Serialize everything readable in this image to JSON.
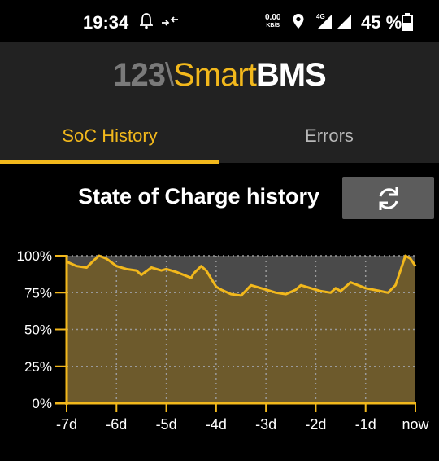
{
  "status_bar": {
    "time": "19:34",
    "speed_value": "0.00",
    "speed_unit": "KB/S",
    "network": "4G",
    "battery": "45 %",
    "icons": [
      "bell-icon",
      "data-transfer-icon",
      "location-icon",
      "signal-icon",
      "battery-icon"
    ]
  },
  "header": {
    "logo_part1": "123",
    "logo_part2": "\\",
    "logo_part3": "Smart",
    "logo_part4": "BMS"
  },
  "tabs": [
    {
      "label": "SoC History",
      "active": true
    },
    {
      "label": "Errors",
      "active": false
    }
  ],
  "page": {
    "title": "State of Charge history",
    "refresh_icon": "refresh-icon"
  },
  "colors": {
    "accent": "#f2b81c",
    "area_fill": "#6d5a2c",
    "missing_band": "#4a4a4a",
    "header_bg": "#222222"
  },
  "chart_data": {
    "type": "area",
    "title": "",
    "xlabel": "",
    "ylabel": "",
    "xlim": [
      -7,
      0
    ],
    "ylim": [
      0,
      100
    ],
    "x_ticks": [
      "-7d",
      "-6d",
      "-5d",
      "-4d",
      "-3d",
      "-2d",
      "-1d",
      "now"
    ],
    "y_ticks": [
      "0%",
      "25%",
      "50%",
      "75%",
      "100%"
    ],
    "grid": true,
    "x": [
      -7.0,
      -6.8,
      -6.6,
      -6.45,
      -6.35,
      -6.2,
      -6.0,
      -5.8,
      -5.6,
      -5.5,
      -5.3,
      -5.1,
      -5.0,
      -4.8,
      -4.5,
      -4.45,
      -4.3,
      -4.2,
      -4.0,
      -3.9,
      -3.7,
      -3.5,
      -3.3,
      -3.0,
      -2.8,
      -2.6,
      -2.4,
      -2.3,
      -2.1,
      -1.9,
      -1.7,
      -1.6,
      -1.5,
      -1.3,
      -1.0,
      -0.7,
      -0.55,
      -0.4,
      -0.2,
      -0.1,
      0.0
    ],
    "values": [
      96,
      93,
      92,
      97,
      100,
      98,
      93,
      91,
      90,
      87,
      92,
      90,
      91,
      89,
      85,
      88,
      93,
      90,
      79,
      77,
      74,
      73,
      80,
      77,
      75,
      74,
      77,
      80,
      78,
      76,
      75,
      78,
      76,
      82,
      78,
      76,
      75,
      80,
      100,
      98,
      93
    ],
    "series": [
      {
        "values": [
          96,
          93,
          92,
          97,
          100,
          98,
          93,
          91,
          90,
          87,
          92,
          90,
          91,
          89,
          85,
          88,
          93,
          90,
          79,
          77,
          74,
          73,
          80,
          77,
          75,
          74,
          77,
          80,
          78,
          76,
          75,
          78,
          76,
          82,
          78,
          76,
          75,
          80,
          100,
          98,
          93
        ]
      }
    ]
  }
}
